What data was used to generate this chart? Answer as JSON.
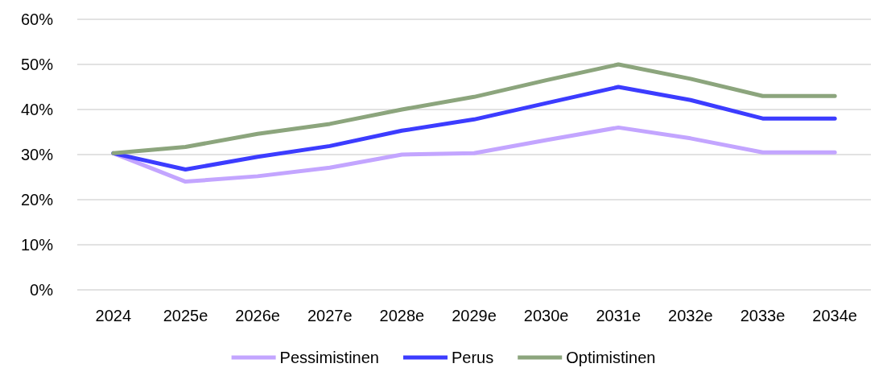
{
  "chart_data": {
    "type": "line",
    "categories": [
      "2024",
      "2025e",
      "2026e",
      "2027e",
      "2028e",
      "2029e",
      "2030e",
      "2031e",
      "2032e",
      "2033e",
      "2034e"
    ],
    "series": [
      {
        "name": "Pessimistinen",
        "color": "#c3a5ff",
        "values": [
          30.3,
          24,
          25.2,
          27.1,
          30,
          30.3,
          33.2,
          36,
          33.6,
          30.5,
          30.5
        ]
      },
      {
        "name": "Perus",
        "color": "#3c3cff",
        "values": [
          30.3,
          26.7,
          29.5,
          31.9,
          35.3,
          37.8,
          41.4,
          45,
          42.1,
          38,
          38
        ]
      },
      {
        "name": "Optimistinen",
        "color": "#8ca57d",
        "values": [
          30.3,
          31.7,
          34.6,
          36.8,
          40,
          42.8,
          46.5,
          50,
          46.8,
          43,
          43
        ]
      }
    ],
    "ylim": [
      0,
      60
    ],
    "yticks": [
      {
        "value": 0,
        "label": "0%"
      },
      {
        "value": 10,
        "label": "10%"
      },
      {
        "value": 20,
        "label": "20%"
      },
      {
        "value": 30,
        "label": "30%"
      },
      {
        "value": 40,
        "label": "40%"
      },
      {
        "value": 50,
        "label": "50%"
      },
      {
        "value": 60,
        "label": "60%"
      }
    ],
    "grid": "y",
    "legend": "bottom",
    "marker": "none",
    "line_style": "solid"
  }
}
